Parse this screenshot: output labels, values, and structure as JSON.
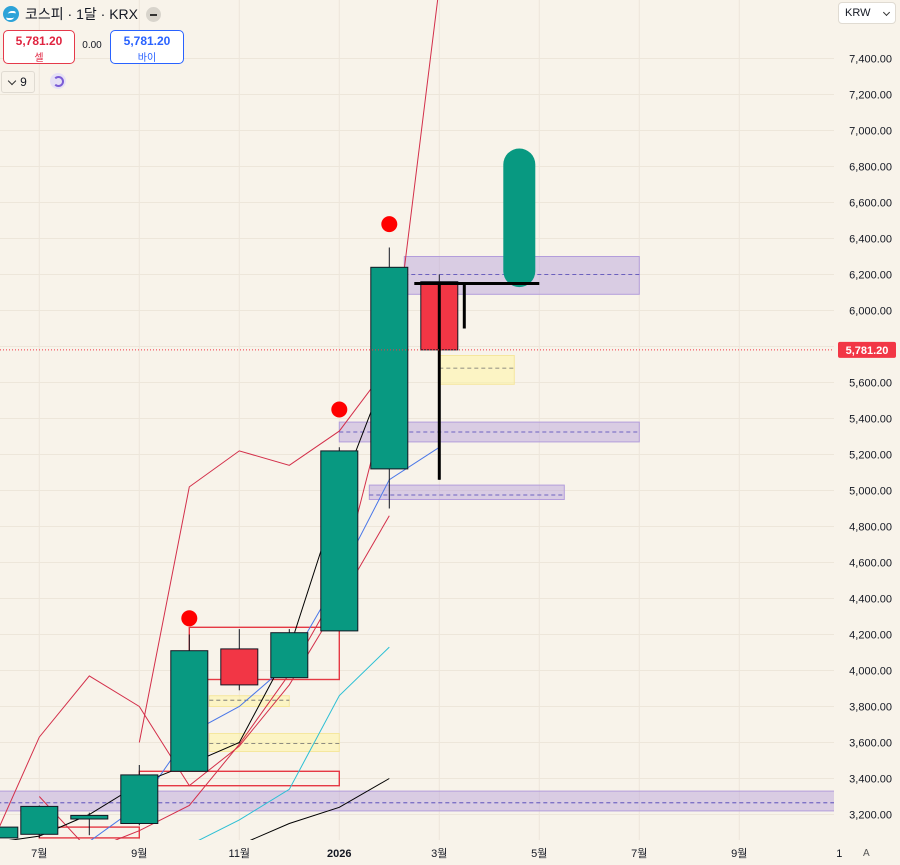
{
  "header": {
    "symbol_title": "코스피 · 1달 · KRX",
    "sell_price": "5,781.20",
    "sell_label": "셀",
    "spread": "0.00",
    "buy_price": "5,781.20",
    "buy_label": "바이",
    "indicator_count": "9",
    "currency": "KRW",
    "auto_scale_label": "A"
  },
  "colors": {
    "up": "#089981",
    "down": "#f23645",
    "price_line": "#f23645",
    "zone_purple": "#b39ddb",
    "zone_yellow": "#fff59d",
    "red_signal": "#ff0000"
  },
  "chart_data": {
    "type": "candlestick",
    "symbol": "코스피",
    "interval": "1달",
    "exchange": "KRX",
    "current_price": 5781.2,
    "current_price_label": "5,781.20",
    "y_ticks": [
      3200,
      3400,
      3600,
      3800,
      4000,
      4200,
      4400,
      4600,
      4800,
      5000,
      5200,
      5400,
      5600,
      5800,
      6000,
      6200,
      6400,
      6600,
      6800,
      7000,
      7200,
      7400
    ],
    "y_tick_labels": [
      "3,200.00",
      "3,400.00",
      "3,600.00",
      "3,800.00",
      "4,000.00",
      "4,200.00",
      "4,400.00",
      "4,600.00",
      "4,800.00",
      "5,000.00",
      "5,200.00",
      "5,400.00",
      "5,600.00",
      "5,800.00",
      "6,000.00",
      "6,200.00",
      "6,400.00",
      "6,600.00",
      "6,800.00",
      "7,000.00",
      "7,200.00",
      "7,400.00"
    ],
    "x_labels": [
      {
        "label": "7월",
        "month": 0
      },
      {
        "label": "9월",
        "month": 2
      },
      {
        "label": "11월",
        "month": 4
      },
      {
        "label": "2026",
        "month": 6,
        "bold": true
      },
      {
        "label": "3월",
        "month": 8
      },
      {
        "label": "5월",
        "month": 10
      },
      {
        "label": "7월",
        "month": 12
      },
      {
        "label": "9월",
        "month": 14
      },
      {
        "label": "1",
        "month": 16
      }
    ],
    "candles": [
      {
        "m": -0.8,
        "o": 3070,
        "h": 3130,
        "l": 3020,
        "c": 3130
      },
      {
        "m": 0,
        "o": 3090,
        "h": 3250,
        "l": 3070,
        "c": 3245
      },
      {
        "m": 1,
        "o": 3175,
        "h": 3210,
        "l": 3085,
        "c": 3195
      },
      {
        "m": 2,
        "o": 3150,
        "h": 3475,
        "l": 3140,
        "c": 3420
      },
      {
        "m": 3,
        "o": 3440,
        "h": 4200,
        "l": 3440,
        "c": 4110
      },
      {
        "m": 4,
        "o": 4120,
        "h": 4230,
        "l": 3890,
        "c": 3920
      },
      {
        "m": 5,
        "o": 3960,
        "h": 4230,
        "l": 3960,
        "c": 4210
      },
      {
        "m": 6,
        "o": 4220,
        "h": 5240,
        "l": 4220,
        "c": 5220
      },
      {
        "m": 7,
        "o": 5120,
        "h": 6350,
        "l": 4900,
        "c": 6240
      },
      {
        "m": 8,
        "o": 6160,
        "h": 6200,
        "l": 5060,
        "c": 5781.2
      }
    ],
    "signal_dots": [
      {
        "m": 3,
        "y": 4290
      },
      {
        "m": 6,
        "y": 5450
      },
      {
        "m": 7,
        "y": 6480
      }
    ],
    "lines": [
      {
        "name": "",
        "color": "#d32f4a",
        "points": [
          [
            -0.8,
            3130
          ],
          [
            0,
            3630
          ],
          [
            1,
            3970
          ],
          [
            2,
            3800
          ],
          [
            3,
            3360
          ],
          [
            4,
            3580
          ],
          [
            5,
            3920
          ],
          [
            6,
            4380
          ],
          [
            7,
            4860
          ]
        ]
      },
      {
        "name": "",
        "color": "#d32f4a",
        "points": [
          [
            0,
            3300
          ],
          [
            1,
            3000
          ],
          [
            2,
            3110
          ],
          [
            3,
            3250
          ],
          [
            4,
            3590
          ],
          [
            5,
            3980
          ],
          [
            6,
            4470
          ],
          [
            7,
            5560
          ],
          [
            8,
            7800
          ]
        ]
      },
      {
        "name": "",
        "color": "#d32f4a",
        "points": [
          [
            2,
            3600
          ],
          [
            3,
            5020
          ],
          [
            4,
            5220
          ],
          [
            5,
            5140
          ],
          [
            6,
            5330
          ],
          [
            7,
            5700
          ]
        ]
      },
      {
        "name": "",
        "color": "#4a77e8",
        "points": [
          [
            0,
            2900
          ],
          [
            1,
            3050
          ],
          [
            2,
            3250
          ],
          [
            3,
            3650
          ],
          [
            4,
            3800
          ],
          [
            5,
            4040
          ],
          [
            6,
            4520
          ],
          [
            7,
            5060
          ],
          [
            8,
            5240
          ]
        ]
      },
      {
        "name": "",
        "color": "#2bbfd4",
        "points": [
          [
            2,
            2900
          ],
          [
            3,
            3030
          ],
          [
            4,
            3170
          ],
          [
            5,
            3340
          ],
          [
            6,
            3860
          ],
          [
            7,
            4130
          ]
        ]
      },
      {
        "name": "",
        "color": "#000000",
        "points": [
          [
            4,
            3030
          ],
          [
            5,
            3150
          ],
          [
            6,
            3240
          ],
          [
            7,
            3400
          ]
        ]
      },
      {
        "name": "",
        "color": "#000000",
        "points": [
          [
            -1,
            3040
          ],
          [
            0,
            3080
          ],
          [
            1,
            3200
          ],
          [
            2,
            3370
          ],
          [
            3,
            3480
          ],
          [
            4,
            3600
          ],
          [
            5,
            4120
          ],
          [
            6,
            4980
          ],
          [
            7,
            5700
          ]
        ]
      }
    ],
    "zones": [
      {
        "color": "purple",
        "m1": -1.4,
        "m2": 16,
        "y1": 3220,
        "y2": 3330,
        "mid": 3265
      },
      {
        "color": "purple",
        "m1": 6.6,
        "m2": 10.5,
        "y1": 4950,
        "y2": 5030,
        "mid": 4975
      },
      {
        "color": "purple",
        "m1": 6,
        "m2": 12,
        "y1": 5270,
        "y2": 5380,
        "mid": 5325
      },
      {
        "color": "purple",
        "m1": 7.3,
        "m2": 12,
        "y1": 6090,
        "y2": 6300,
        "mid": 6200
      },
      {
        "color": "yellow",
        "m1": 3.4,
        "m2": 6,
        "y1": 3550,
        "y2": 3650,
        "mid": 3595
      },
      {
        "color": "yellow",
        "m1": 3.4,
        "m2": 5,
        "y1": 3800,
        "y2": 3860,
        "mid": 3835
      },
      {
        "color": "yellow",
        "m1": 8,
        "m2": 9.5,
        "y1": 5590,
        "y2": 5750,
        "mid": 5680
      }
    ],
    "red_boxes": [
      {
        "m1": 0,
        "m2": 2,
        "y1": 3070,
        "y2": 3130
      },
      {
        "m1": 2,
        "m2": 6,
        "y1": 3360,
        "y2": 3440
      },
      {
        "m1": 3,
        "m2": 6,
        "y1": 3950,
        "y2": 4240
      }
    ],
    "projection": {
      "pill": {
        "m": 9.6,
        "y_top": 6900,
        "y_bottom": 6130
      },
      "hbar": {
        "m1": 7.5,
        "m2": 10,
        "y": 6150
      },
      "vbar": {
        "m": 8.5,
        "y1": 6150,
        "y2": 5900
      }
    }
  }
}
